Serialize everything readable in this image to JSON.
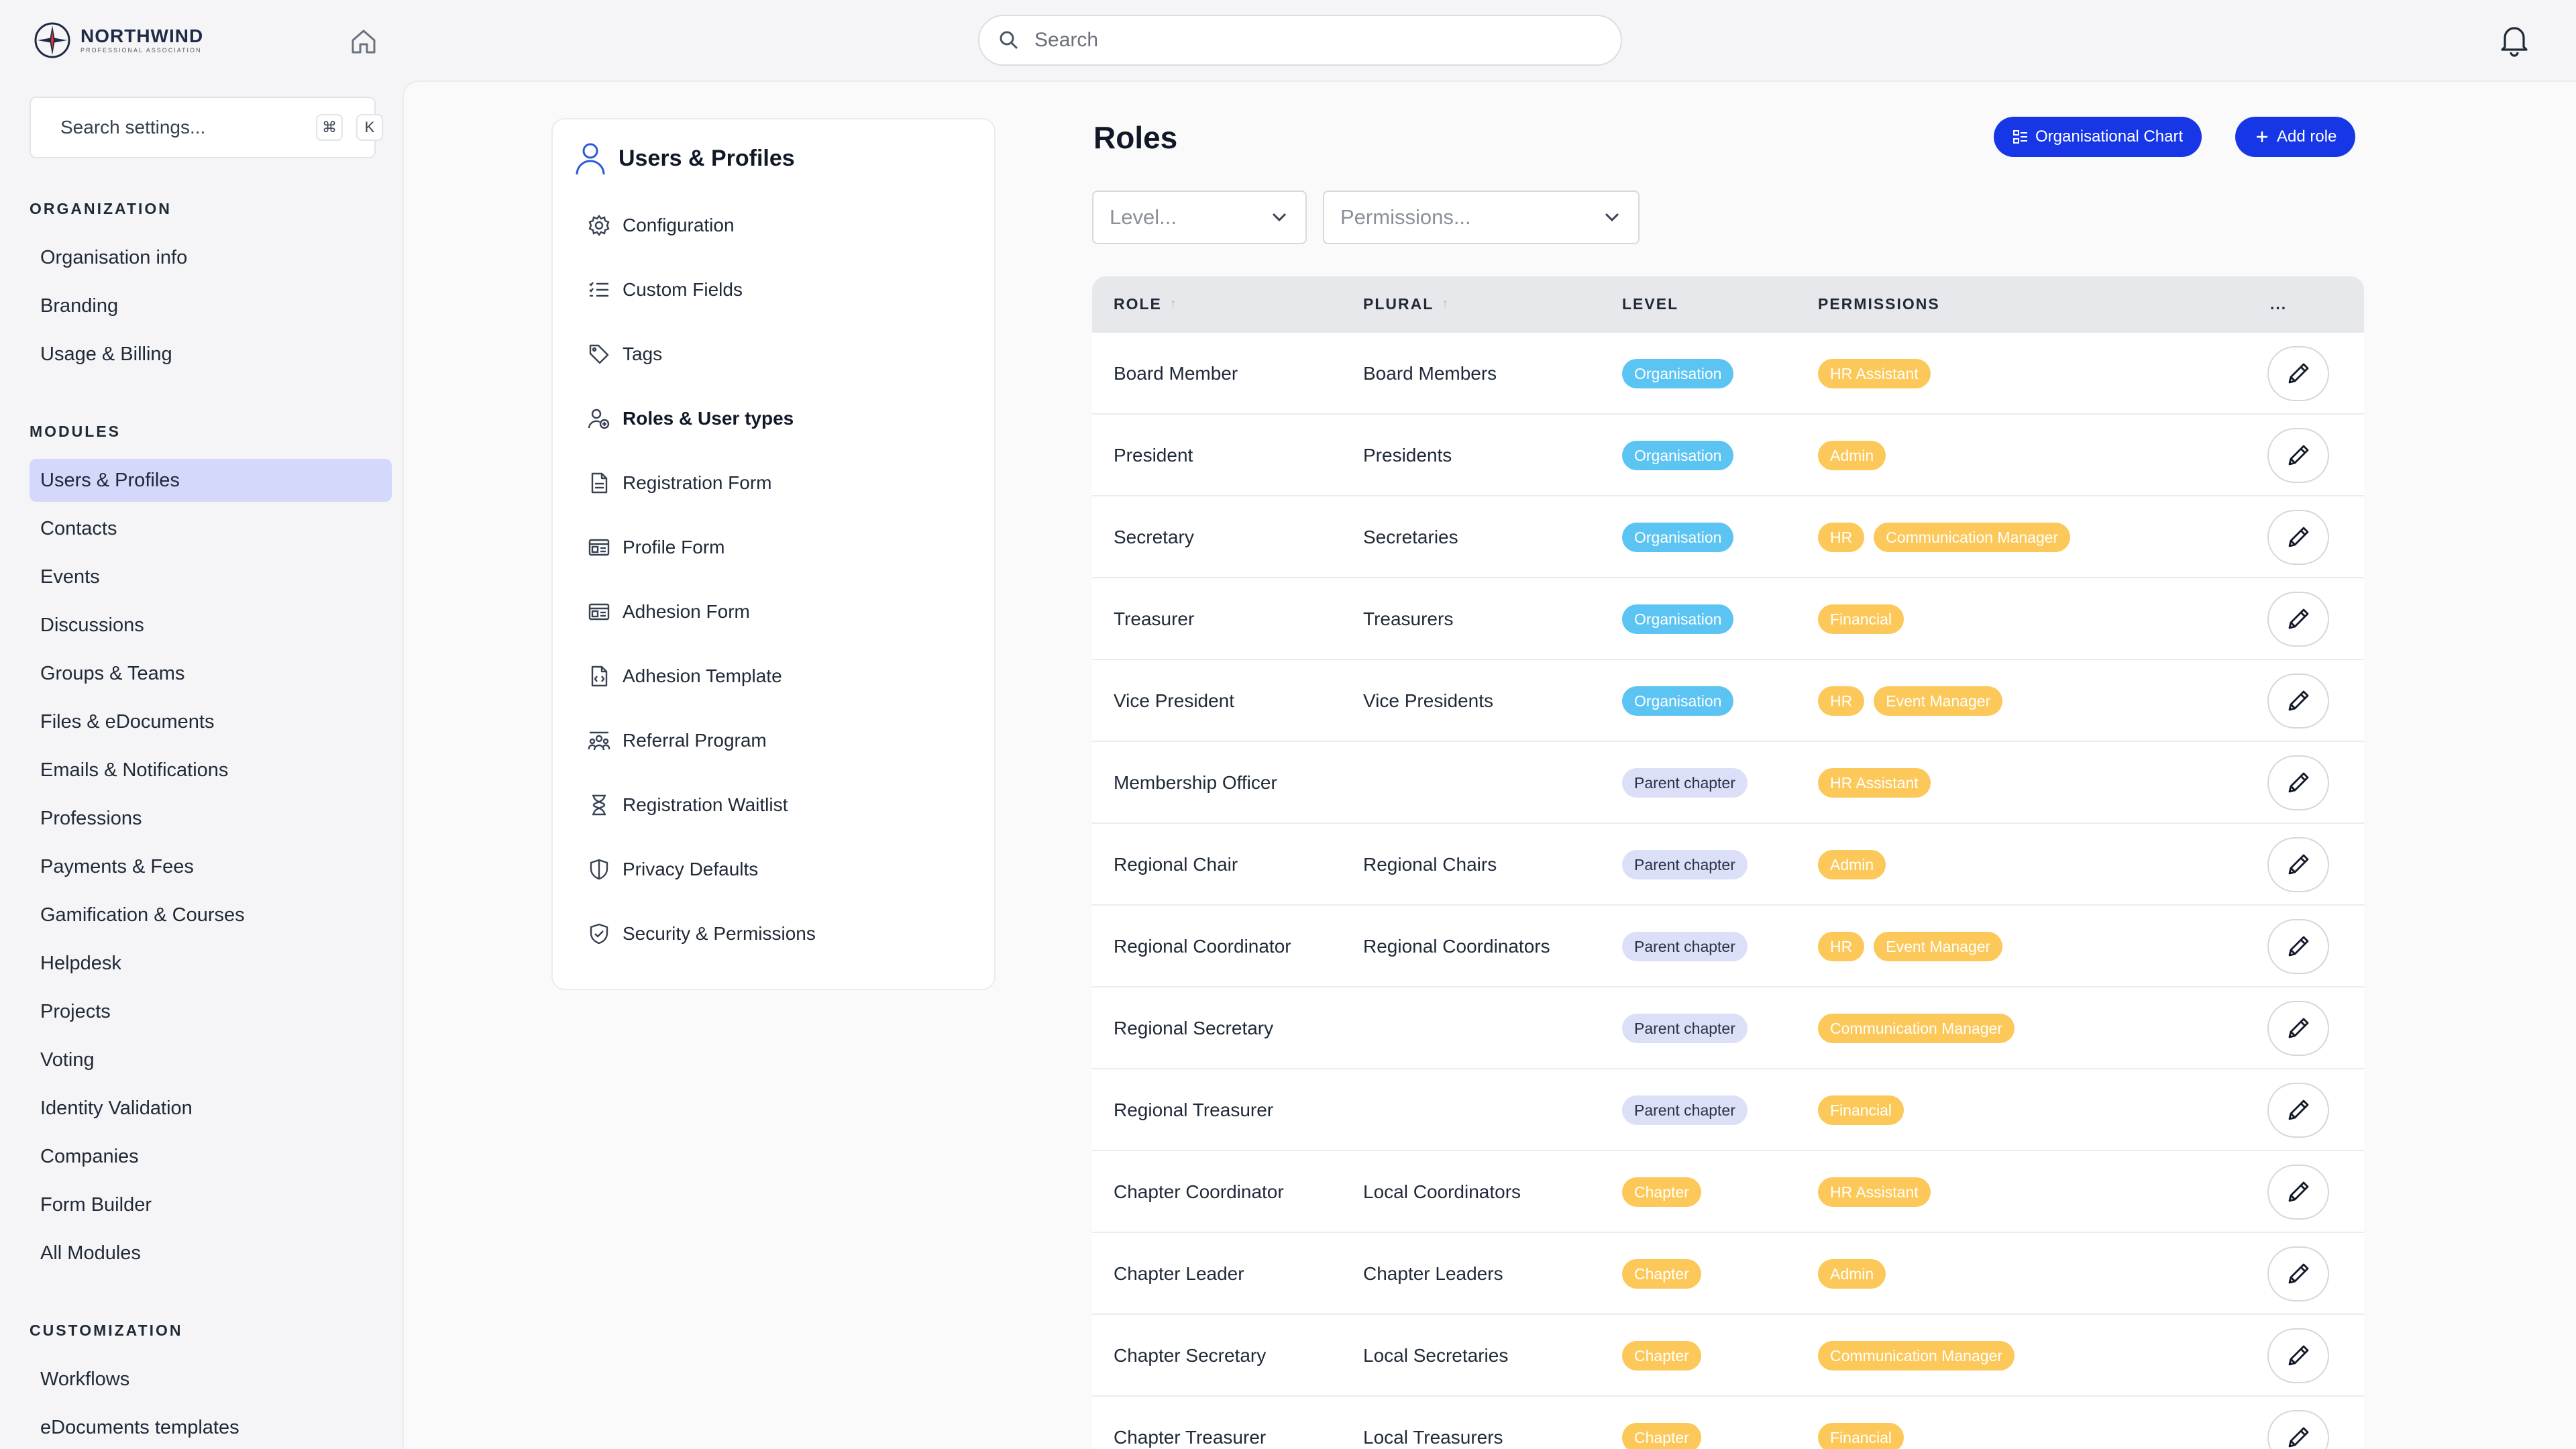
{
  "brand": {
    "name": "NORTHWIND",
    "subtitle": "PROFESSIONAL ASSOCIATION"
  },
  "header": {
    "search_placeholder": "Search"
  },
  "sidebar": {
    "search_placeholder": "Search settings...",
    "shortcut": [
      "⌘",
      "K"
    ],
    "sections": [
      {
        "title": "ORGANIZATION",
        "items": [
          "Organisation info",
          "Branding",
          "Usage & Billing"
        ]
      },
      {
        "title": "MODULES",
        "items": [
          "Users & Profiles",
          "Contacts",
          "Events",
          "Discussions",
          "Groups & Teams",
          "Files & eDocuments",
          "Emails & Notifications",
          "Professions",
          "Payments & Fees",
          "Gamification & Courses",
          "Helpdesk",
          "Projects",
          "Voting",
          "Identity Validation",
          "Companies",
          "Form Builder",
          "All Modules"
        ]
      },
      {
        "title": "CUSTOMIZATION",
        "items": [
          "Workflows",
          "eDocuments templates"
        ]
      }
    ],
    "active_item": "Users & Profiles"
  },
  "submenu": {
    "title": "Users & Profiles",
    "items": [
      {
        "label": "Configuration",
        "icon": "gear-icon"
      },
      {
        "label": "Custom Fields",
        "icon": "checklist-icon"
      },
      {
        "label": "Tags",
        "icon": "tag-icon"
      },
      {
        "label": "Roles & User types",
        "icon": "user-role-icon"
      },
      {
        "label": "Registration Form",
        "icon": "document-icon"
      },
      {
        "label": "Profile Form",
        "icon": "id-card-icon"
      },
      {
        "label": "Adhesion Form",
        "icon": "id-card-icon"
      },
      {
        "label": "Adhesion Template",
        "icon": "file-code-icon"
      },
      {
        "label": "Referral Program",
        "icon": "referral-icon"
      },
      {
        "label": "Registration Waitlist",
        "icon": "hourglass-icon"
      },
      {
        "label": "Privacy Defaults",
        "icon": "shield-icon"
      },
      {
        "label": "Security & Permissions",
        "icon": "shield-check-icon"
      }
    ],
    "active": "Roles & User types"
  },
  "roles": {
    "title": "Roles",
    "org_chart_button": "Organisational Chart",
    "add_role_button": "Add role",
    "level_filter_placeholder": "Level...",
    "permissions_filter_placeholder": "Permissions...",
    "columns": [
      "ROLE",
      "PLURAL",
      "LEVEL",
      "PERMISSIONS",
      "..."
    ],
    "rows": [
      {
        "role": "Board Member",
        "plural": "Board Members",
        "level": "Organisation",
        "level_type": "org",
        "permissions": [
          "HR Assistant"
        ]
      },
      {
        "role": "President",
        "plural": "Presidents",
        "level": "Organisation",
        "level_type": "org",
        "permissions": [
          "Admin"
        ]
      },
      {
        "role": "Secretary",
        "plural": "Secretaries",
        "level": "Organisation",
        "level_type": "org",
        "permissions": [
          "HR",
          "Communication Manager"
        ]
      },
      {
        "role": "Treasurer",
        "plural": "Treasurers",
        "level": "Organisation",
        "level_type": "org",
        "permissions": [
          "Financial"
        ]
      },
      {
        "role": "Vice President",
        "plural": "Vice Presidents",
        "level": "Organisation",
        "level_type": "org",
        "permissions": [
          "HR",
          "Event Manager"
        ]
      },
      {
        "role": "Membership Officer",
        "plural": "",
        "level": "Parent chapter",
        "level_type": "parent",
        "permissions": [
          "HR Assistant"
        ]
      },
      {
        "role": "Regional Chair",
        "plural": "Regional Chairs",
        "level": "Parent chapter",
        "level_type": "parent",
        "permissions": [
          "Admin"
        ]
      },
      {
        "role": "Regional Coordinator",
        "plural": "Regional Coordinators",
        "level": "Parent chapter",
        "level_type": "parent",
        "permissions": [
          "HR",
          "Event Manager"
        ]
      },
      {
        "role": "Regional Secretary",
        "plural": "",
        "level": "Parent chapter",
        "level_type": "parent",
        "permissions": [
          "Communication Manager"
        ]
      },
      {
        "role": "Regional Treasurer",
        "plural": "",
        "level": "Parent chapter",
        "level_type": "parent",
        "permissions": [
          "Financial"
        ]
      },
      {
        "role": "Chapter Coordinator",
        "plural": "Local Coordinators",
        "level": "Chapter",
        "level_type": "chapter",
        "permissions": [
          "HR Assistant"
        ]
      },
      {
        "role": "Chapter Leader",
        "plural": "Chapter Leaders",
        "level": "Chapter",
        "level_type": "chapter",
        "permissions": [
          "Admin"
        ]
      },
      {
        "role": "Chapter Secretary",
        "plural": "Local Secretaries",
        "level": "Chapter",
        "level_type": "chapter",
        "permissions": [
          "Communication Manager"
        ]
      },
      {
        "role": "Chapter Treasurer",
        "plural": "Local Treasurers",
        "level": "Chapter",
        "level_type": "chapter",
        "permissions": [
          "Financial"
        ]
      }
    ]
  },
  "colors": {
    "accent": "#1737e6",
    "organisation_pill": "#5cc4f2",
    "parent_chapter_pill": "#dcdff8",
    "chapter_pill": "#fcc859",
    "active_nav": "#d4d8fb"
  }
}
